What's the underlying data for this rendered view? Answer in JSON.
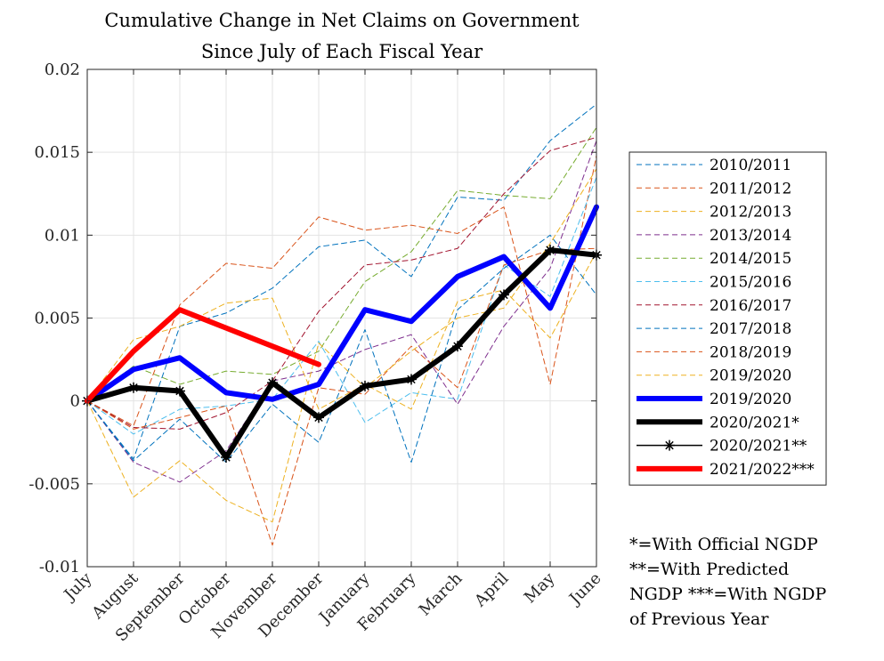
{
  "chart_data": {
    "type": "line",
    "title": [
      "Cumulative Change in Net Claims on Government",
      "Since July of Each Fiscal Year"
    ],
    "xlabel": "",
    "ylabel": "",
    "categories": [
      "July",
      "August",
      "September",
      "October",
      "November",
      "December",
      "January",
      "February",
      "March",
      "April",
      "May",
      "June"
    ],
    "ylim": [
      -0.01,
      0.02
    ],
    "yticks": [
      -0.01,
      -0.005,
      0,
      0.005,
      0.01,
      0.015,
      0.02
    ],
    "ytick_labels": [
      "-0.01",
      "-0.005",
      "0",
      "0.005",
      "0.01",
      "0.015",
      "0.02"
    ],
    "grid": true,
    "legend_position": "right",
    "series": [
      {
        "name": "2010/2011",
        "color": "#0072BD",
        "style": "dashed",
        "width": 1,
        "values": [
          0,
          -0.0035,
          0.0045,
          0.0053,
          0.0068,
          0.0093,
          0.0097,
          0.0075,
          0.0123,
          0.0121,
          0.0157,
          0.0179
        ]
      },
      {
        "name": "2011/2012",
        "color": "#D95319",
        "style": "dashed",
        "width": 1,
        "values": [
          0,
          -0.0015,
          0.0058,
          0.0083,
          0.008,
          0.0111,
          0.0103,
          0.0106,
          0.0101,
          0.0117,
          0.001,
          0.0148
        ]
      },
      {
        "name": "2012/2013",
        "color": "#EDB120",
        "style": "dashed",
        "width": 1,
        "values": [
          0,
          0.0037,
          0.0045,
          0.0059,
          0.0062,
          -0.0005,
          0.001,
          -0.0005,
          0.006,
          0.0067,
          0.0038,
          0.009
        ]
      },
      {
        "name": "2013/2014",
        "color": "#7E2F8E",
        "style": "dashed",
        "width": 1,
        "values": [
          0,
          -0.0037,
          -0.0049,
          -0.003,
          0.0012,
          0.0018,
          0.0031,
          0.004,
          -0.0002,
          0.0045,
          0.008,
          0.0157
        ]
      },
      {
        "name": "2014/2015",
        "color": "#77AC30",
        "style": "dashed",
        "width": 1,
        "values": [
          0,
          0.0021,
          0.001,
          0.0018,
          0.0016,
          0.003,
          0.0072,
          0.009,
          0.0127,
          0.0124,
          0.0122,
          0.0165
        ]
      },
      {
        "name": "2015/2016",
        "color": "#4DBEEE",
        "style": "dashed",
        "width": 1,
        "values": [
          0,
          -0.002,
          -0.0005,
          -0.0003,
          0.0001,
          0.0036,
          -0.0013,
          0.0005,
          0.0001,
          0.0082,
          0.0063,
          0.0135
        ]
      },
      {
        "name": "2016/2017",
        "color": "#A2142F",
        "style": "dashed",
        "width": 1,
        "values": [
          0,
          -0.0016,
          -0.0017,
          -0.0007,
          0.0012,
          0.0054,
          0.0082,
          0.0085,
          0.0092,
          0.0125,
          0.0151,
          0.0159
        ]
      },
      {
        "name": "2017/2018",
        "color": "#0072BD",
        "style": "dashed",
        "width": 1,
        "values": [
          0,
          -0.0036,
          -0.0011,
          -0.0037,
          -0.0002,
          -0.0025,
          0.0043,
          -0.0037,
          0.0055,
          0.008,
          0.01,
          0.0064
        ]
      },
      {
        "name": "2018/2019",
        "color": "#D95319",
        "style": "dashed",
        "width": 1,
        "values": [
          0,
          -0.0017,
          -0.001,
          -0.0003,
          -0.0087,
          0.0008,
          0.0004,
          0.0033,
          0.0008,
          0.0082,
          0.0091,
          0.0092
        ]
      },
      {
        "name": "2019/2020",
        "color": "#EDB120",
        "style": "dashed",
        "width": 1,
        "values": [
          0,
          -0.0058,
          -0.0036,
          -0.006,
          -0.0073,
          0.0035,
          0.0008,
          0.003,
          0.005,
          0.0056,
          0.0095,
          0.014
        ]
      },
      {
        "name": "2019/2020",
        "color": "#0000FF",
        "style": "solid",
        "width": 6,
        "values": [
          0,
          0.0019,
          0.0026,
          0.0005,
          0.0001,
          0.001,
          0.0055,
          0.0048,
          0.0075,
          0.0087,
          0.0056,
          0.0117
        ]
      },
      {
        "name": "2020/2021*",
        "color": "#000000",
        "style": "solid",
        "width": 6,
        "values": [
          0,
          0.0008,
          0.0006,
          -0.0034,
          0.0011,
          -0.001,
          0.0009,
          0.0013,
          0.0033,
          0.0064,
          0.0091,
          0.0088
        ]
      },
      {
        "name": "2020/2021**",
        "color": "#000000",
        "style": "solid",
        "width": 1.5,
        "marker": "asterisk",
        "values": [
          0,
          0.0008,
          0.0006,
          -0.0034,
          0.0011,
          -0.001,
          0.0009,
          0.0013,
          0.0033,
          0.0064,
          0.0091,
          0.0088
        ]
      },
      {
        "name": "2021/2022***",
        "color": "#FF0000",
        "style": "solid",
        "width": 6,
        "values": [
          0,
          0.003,
          0.0055,
          null,
          null,
          0.0022,
          null,
          null,
          null,
          null,
          null,
          null
        ]
      }
    ]
  },
  "footnote": {
    "line1": "*=With Official NGDP",
    "line2": "**=With Predicted",
    "line3": "NGDP ***=With NGDP",
    "line4": "of Previous Year"
  }
}
